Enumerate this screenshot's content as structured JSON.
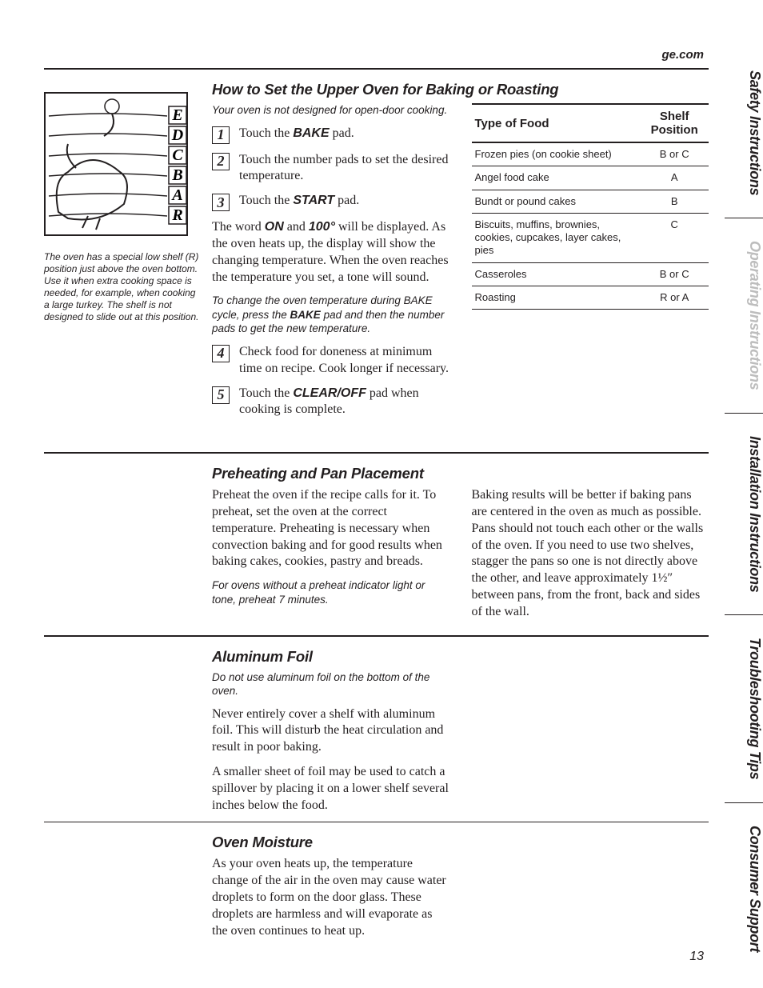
{
  "header_link": "ge.com",
  "side_tabs": [
    {
      "label": "Safety Instructions",
      "faded": false
    },
    {
      "label": "Operating Instructions",
      "faded": true
    },
    {
      "label": "Installation Instructions",
      "faded": false
    },
    {
      "label": "Troubleshooting Tips",
      "faded": false
    },
    {
      "label": "Consumer Support",
      "faded": false
    }
  ],
  "oven_caption": "The oven has a special low shelf (R) position just above the oven bottom. Use it when extra cooking space is needed, for example, when cooking a large turkey. The shelf is not designed to slide out at this position.",
  "shelf_labels": [
    "E",
    "D",
    "C",
    "B",
    "A",
    "R"
  ],
  "section1": {
    "title": "How to Set the Upper Oven for Baking or Roasting",
    "intro_note": "Your oven is not designed for open-door cooking.",
    "steps": [
      {
        "num": "1",
        "pre": "Touch the ",
        "bold": "BAKE",
        "post": " pad."
      },
      {
        "num": "2",
        "pre": "Touch the number pads to set the desired temperature.",
        "bold": "",
        "post": ""
      },
      {
        "num": "3",
        "pre": "Touch the ",
        "bold": "START",
        "post": " pad."
      }
    ],
    "after_steps_p1_a": "The word ",
    "after_steps_b1": "ON",
    "after_steps_mid": " and ",
    "after_steps_b2": "100°",
    "after_steps_p1_b": " will be displayed. As the oven heats up, the display will show the changing temperature. When the oven reaches the temperature you set, a tone will sound.",
    "change_note_a": "To change the oven temperature during BAKE cycle, press the ",
    "change_note_bold": "BAKE",
    "change_note_b": " pad and then the number pads to get the new temperature.",
    "steps2": [
      {
        "num": "4",
        "text": "Check food for doneness at minimum time on recipe. Cook longer if necessary."
      },
      {
        "num": "5",
        "pre": "Touch the ",
        "bold": "CLEAR/OFF",
        "post": " pad when cooking is complete."
      }
    ],
    "table": {
      "headers": [
        "Type of Food",
        "Shelf Position"
      ],
      "rows": [
        [
          "Frozen pies (on cookie sheet)",
          "B or C"
        ],
        [
          "Angel food cake",
          "A"
        ],
        [
          "Bundt or pound cakes",
          "B"
        ],
        [
          "Biscuits, muffins, brownies, cookies, cupcakes, layer cakes, pies",
          "C"
        ],
        [
          "Casseroles",
          "B or C"
        ],
        [
          "Roasting",
          "R or A"
        ]
      ]
    }
  },
  "section2": {
    "title": "Preheating and Pan Placement",
    "left_p": "Preheat the oven if the recipe calls for it. To preheat, set the oven at the correct temperature. Preheating is necessary when convection baking and for good results when baking cakes, cookies, pastry and breads.",
    "left_note": "For ovens without a preheat indicator light or tone, preheat 7 minutes.",
    "right_p": "Baking results will be better if baking pans are centered in the oven as much as possible. Pans should not touch each other or the walls of the oven. If you need to use two shelves, stagger the pans so one is not directly above the other, and leave approximately 1½″ between pans, from the front, back and sides of the wall."
  },
  "section3": {
    "title": "Aluminum Foil",
    "note": "Do not use aluminum foil on the bottom of the oven.",
    "p1": "Never entirely cover a shelf with aluminum foil. This will disturb the heat circulation and result in poor baking.",
    "p2": "A smaller sheet of foil may be used to catch a spillover by placing it on a lower shelf several inches below the food."
  },
  "section4": {
    "title": "Oven Moisture",
    "p": "As your oven heats up, the temperature change of the air in the oven may cause water droplets to form on the door glass. These droplets are harmless and will evaporate as the oven continues to heat up."
  },
  "page_number": "13"
}
